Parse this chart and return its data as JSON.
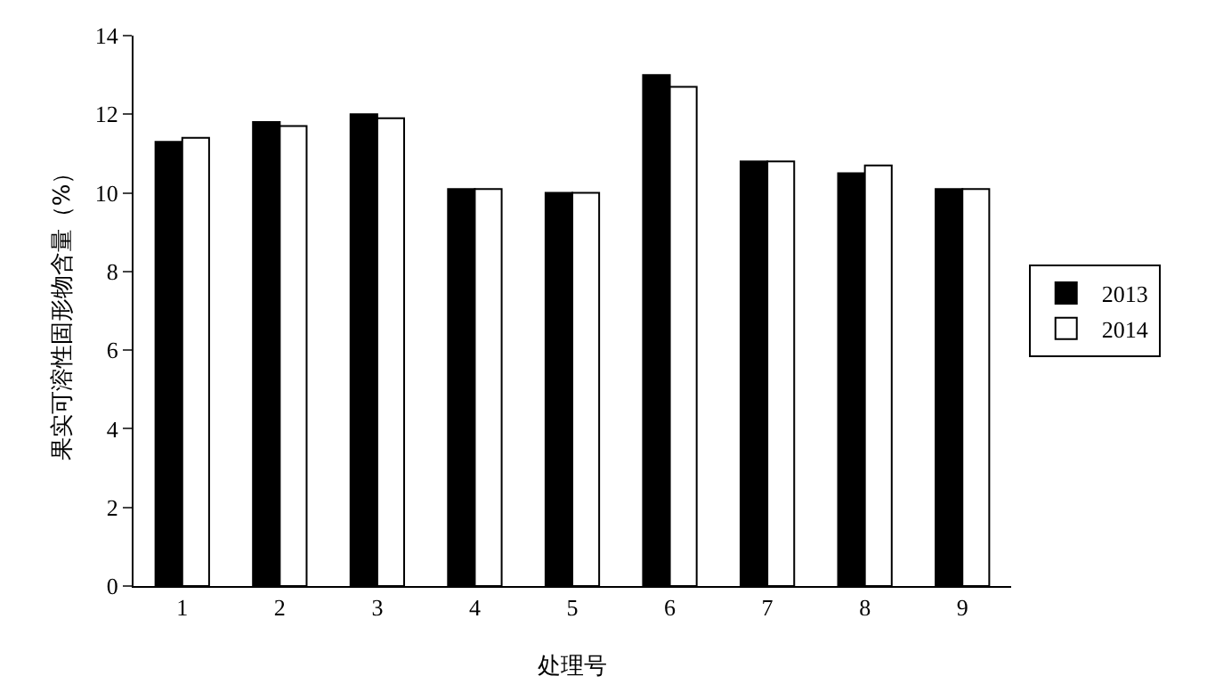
{
  "chart_data": {
    "type": "bar",
    "xlabel": "处理号",
    "ylabel": "果实可溶性固形物含量（%）",
    "categories": [
      "1",
      "2",
      "3",
      "4",
      "5",
      "6",
      "7",
      "8",
      "9"
    ],
    "series": [
      {
        "name": "2013",
        "color": "#000000",
        "values": [
          11.3,
          11.8,
          12.0,
          10.1,
          10.0,
          13.0,
          10.8,
          10.5,
          10.1
        ]
      },
      {
        "name": "2014",
        "color": "#ffffff",
        "values": [
          11.4,
          11.7,
          11.9,
          10.1,
          10.0,
          12.7,
          10.8,
          10.7,
          10.1
        ]
      }
    ],
    "ylim": [
      0,
      14
    ],
    "yticks": [
      0,
      2,
      4,
      6,
      8,
      10,
      12,
      14
    ],
    "grid": false,
    "legend": "right"
  }
}
